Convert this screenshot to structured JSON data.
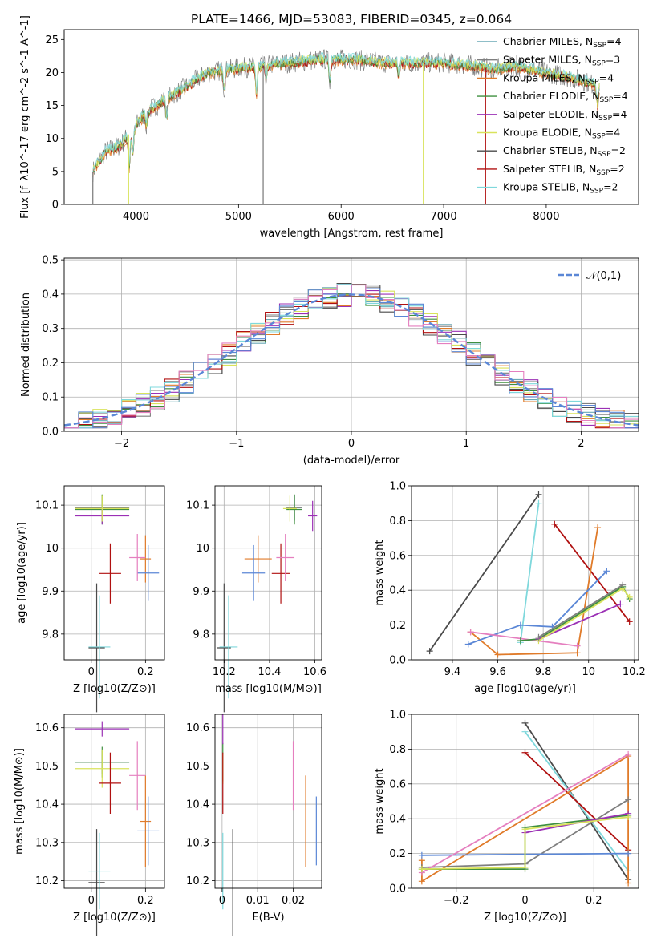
{
  "figure": {
    "title": "PLATE=1466, MJD=53083, FIBERID=0345, z=0.064"
  },
  "colors": {
    "chabrier_miles": "#6aa9b5",
    "salpeter_miles": "#7f7f7f",
    "kroupa_miles": "#e07b2a",
    "chabrier_elodie": "#3f8f3f",
    "salpeter_elodie": "#9b30b5",
    "kroupa_elodie": "#d9e35c",
    "chabrier_stelib": "#4a4a4a",
    "salpeter_stelib": "#b01010",
    "kroupa_stelib": "#7fd8dc",
    "blue": "#5b87d6",
    "pink": "#e57fbf"
  },
  "chart_data": [
    {
      "id": "spectrum",
      "type": "line",
      "title": "PLATE=1466, MJD=53083, FIBERID=0345, z=0.064",
      "xlabel": "wavelength [Angstrom, rest frame]",
      "ylabel": "Flux [f_λ10^-17 erg cm^-2 s^-1 A^-1]",
      "xlim": [
        3300,
        8900
      ],
      "ylim": [
        0,
        26.5
      ],
      "xticks": [
        4000,
        5000,
        6000,
        7000,
        8000
      ],
      "yticks": [
        0,
        5,
        10,
        15,
        20,
        25
      ],
      "legend_position": "right",
      "legend": [
        "Chabrier MILES, N_SSP=4",
        "Salpeter MILES, N_SSP=3",
        "Kroupa MILES, N_SSP=4",
        "Chabrier ELODIE, N_SSP=4",
        "Salpeter ELODIE, N_SSP=4",
        "Kroupa ELODIE, N_SSP=4",
        "Chabrier STELIB, N_SSP=2",
        "Salpeter STELIB, N_SSP=2",
        "Kroupa STELIB, N_SSP=2"
      ],
      "continuum": [
        [
          3580,
          5
        ],
        [
          3700,
          8
        ],
        [
          3850,
          9
        ],
        [
          3950,
          11
        ],
        [
          4100,
          14
        ],
        [
          4300,
          16
        ],
        [
          4500,
          18
        ],
        [
          4700,
          20
        ],
        [
          4900,
          20.5
        ],
        [
          5200,
          21
        ],
        [
          5500,
          21.5
        ],
        [
          5800,
          22
        ],
        [
          6100,
          22
        ],
        [
          6400,
          21.5
        ],
        [
          6700,
          21.5
        ],
        [
          7000,
          21.5
        ],
        [
          7300,
          21
        ],
        [
          7500,
          20.5
        ],
        [
          7700,
          21
        ],
        [
          8000,
          20
        ],
        [
          8300,
          19
        ],
        [
          8500,
          18
        ]
      ],
      "grid": false
    },
    {
      "id": "residuals",
      "type": "step",
      "xlabel": "(data-model)/error",
      "ylabel": "Normed distribution",
      "xlim": [
        -2.5,
        2.5
      ],
      "ylim": [
        0,
        0.505
      ],
      "xticks": [
        -2,
        -1,
        0,
        1,
        2
      ],
      "yticks": [
        0.0,
        0.1,
        0.2,
        0.3,
        0.4,
        0.5
      ],
      "legend": [
        "𝒩(0,1)"
      ],
      "legend_position": "top-right",
      "bin_width": 0.125,
      "bin_start": -2.5,
      "grid": true
    },
    {
      "id": "age-vs-Z",
      "type": "errorbar",
      "xlabel": "Z [log10(Z/Z⊙)]",
      "ylabel": "age  [log10(age/yr)]",
      "xlim": [
        -0.1,
        0.27
      ],
      "ylim": [
        9.74,
        10.145
      ],
      "xticks": [
        0.0,
        0.2
      ],
      "yticks": [
        9.8,
        9.9,
        10.0,
        10.1
      ],
      "points": [
        {
          "x": 0.04,
          "y": 10.094,
          "xerr": 0.1,
          "yerr": 0.03,
          "c": "chabrier_miles"
        },
        {
          "x": 0.04,
          "y": 10.094,
          "xerr": 0.1,
          "yerr": 0.03,
          "c": "salpeter_miles"
        },
        {
          "x": 0.2,
          "y": 9.975,
          "xerr": 0.02,
          "yerr": 0.055,
          "c": "kroupa_miles"
        },
        {
          "x": 0.04,
          "y": 10.09,
          "xerr": 0.1,
          "yerr": 0.035,
          "c": "chabrier_elodie"
        },
        {
          "x": 0.04,
          "y": 10.075,
          "xerr": 0.1,
          "yerr": 0.02,
          "c": "salpeter_elodie"
        },
        {
          "x": 0.04,
          "y": 10.092,
          "xerr": 0.1,
          "yerr": 0.03,
          "c": "kroupa_elodie"
        },
        {
          "x": 0.02,
          "y": 9.768,
          "xerr": 0.03,
          "yerr": 0.15,
          "c": "chabrier_stelib"
        },
        {
          "x": 0.07,
          "y": 9.941,
          "xerr": 0.04,
          "yerr": 0.07,
          "c": "salpeter_stelib"
        },
        {
          "x": 0.03,
          "y": 9.77,
          "xerr": 0.04,
          "yerr": 0.12,
          "c": "kroupa_stelib"
        },
        {
          "x": 0.21,
          "y": 9.942,
          "xerr": 0.04,
          "yerr": 0.065,
          "c": "blue"
        },
        {
          "x": 0.17,
          "y": 9.978,
          "xerr": 0.03,
          "yerr": 0.055,
          "c": "pink"
        }
      ]
    },
    {
      "id": "age-vs-mass",
      "type": "errorbar",
      "xlabel": "mass [log10(M/M⊙)]",
      "ylabel": "",
      "xlim": [
        10.16,
        10.63
      ],
      "ylim": [
        9.74,
        10.145
      ],
      "xticks": [
        10.2,
        10.4,
        10.6
      ],
      "yticks": [
        9.8,
        9.9,
        10.0,
        10.1
      ],
      "points": [
        {
          "x": 10.51,
          "y": 10.094,
          "xerr": 0.035,
          "yerr": 0.03,
          "c": "chabrier_miles"
        },
        {
          "x": 10.51,
          "y": 10.094,
          "xerr": 0.035,
          "yerr": 0.03,
          "c": "salpeter_miles"
        },
        {
          "x": 10.35,
          "y": 9.975,
          "xerr": 0.06,
          "yerr": 0.055,
          "c": "kroupa_miles"
        },
        {
          "x": 10.51,
          "y": 10.09,
          "xerr": 0.035,
          "yerr": 0.035,
          "c": "chabrier_elodie"
        },
        {
          "x": 10.59,
          "y": 10.075,
          "xerr": 0.02,
          "yerr": 0.035,
          "c": "salpeter_elodie"
        },
        {
          "x": 10.49,
          "y": 10.092,
          "xerr": 0.03,
          "yerr": 0.03,
          "c": "kroupa_elodie"
        },
        {
          "x": 10.2,
          "y": 9.768,
          "xerr": 0.03,
          "yerr": 0.15,
          "c": "chabrier_stelib"
        },
        {
          "x": 10.45,
          "y": 9.941,
          "xerr": 0.04,
          "yerr": 0.07,
          "c": "salpeter_stelib"
        },
        {
          "x": 10.22,
          "y": 9.77,
          "xerr": 0.04,
          "yerr": 0.12,
          "c": "kroupa_stelib"
        },
        {
          "x": 10.33,
          "y": 9.942,
          "xerr": 0.05,
          "yerr": 0.065,
          "c": "blue"
        },
        {
          "x": 10.47,
          "y": 9.978,
          "xerr": 0.04,
          "yerr": 0.055,
          "c": "pink"
        }
      ]
    },
    {
      "id": "mass-weight-vs-age",
      "type": "line",
      "xlabel": "age  [log10(age/yr)]",
      "ylabel": "mass weight",
      "xlim": [
        9.22,
        10.22
      ],
      "ylim": [
        0.0,
        1.0
      ],
      "xticks": [
        9.4,
        9.6,
        9.8,
        10.0,
        10.2
      ],
      "yticks": [
        0.0,
        0.2,
        0.4,
        0.6,
        0.8,
        1.0
      ],
      "series": [
        {
          "c": "chabrier_stelib",
          "points": [
            [
              9.3,
              0.05
            ],
            [
              9.78,
              0.95
            ]
          ]
        },
        {
          "c": "kroupa_stelib",
          "points": [
            [
              9.7,
              0.1
            ],
            [
              9.78,
              0.9
            ]
          ]
        },
        {
          "c": "salpeter_stelib",
          "points": [
            [
              9.85,
              0.78
            ],
            [
              10.18,
              0.22
            ]
          ]
        },
        {
          "c": "kroupa_miles",
          "points": [
            [
              9.48,
              0.16
            ],
            [
              9.6,
              0.03
            ],
            [
              9.95,
              0.04
            ],
            [
              10.04,
              0.76
            ]
          ]
        },
        {
          "c": "blue",
          "points": [
            [
              9.47,
              0.09
            ],
            [
              9.7,
              0.2
            ],
            [
              9.84,
              0.19
            ],
            [
              10.08,
              0.51
            ]
          ]
        },
        {
          "c": "pink",
          "points": [
            [
              9.48,
              0.16
            ],
            [
              9.95,
              0.08
            ]
          ]
        },
        {
          "c": "chabrier_elodie",
          "points": [
            [
              9.7,
              0.11
            ],
            [
              9.78,
              0.12
            ],
            [
              10.15,
              0.42
            ],
            [
              10.18,
              0.35
            ]
          ]
        },
        {
          "c": "salpeter_elodie",
          "points": [
            [
              9.78,
              0.12
            ],
            [
              10.14,
              0.32
            ]
          ]
        },
        {
          "c": "kroupa_elodie",
          "points": [
            [
              9.78,
              0.11
            ],
            [
              10.15,
              0.41
            ],
            [
              10.18,
              0.36
            ]
          ]
        },
        {
          "c": "salpeter_miles",
          "points": [
            [
              9.78,
              0.13
            ],
            [
              10.15,
              0.43
            ]
          ]
        }
      ]
    },
    {
      "id": "mass-vs-Z",
      "type": "errorbar",
      "xlabel": "Z [log10(Z/Z⊙)]",
      "ylabel": "mass [log10(M/M⊙)]",
      "xlim": [
        -0.1,
        0.27
      ],
      "ylim": [
        10.18,
        10.635
      ],
      "xticks": [
        0.0,
        0.2
      ],
      "yticks": [
        10.2,
        10.3,
        10.4,
        10.5,
        10.6
      ],
      "points": [
        {
          "x": 0.04,
          "y": 10.51,
          "xerr": 0.1,
          "yerr": 0.03,
          "c": "chabrier_miles"
        },
        {
          "x": 0.04,
          "y": 10.51,
          "xerr": 0.1,
          "yerr": 0.03,
          "c": "salpeter_miles"
        },
        {
          "x": 0.2,
          "y": 10.355,
          "xerr": 0.02,
          "yerr": 0.12,
          "c": "kroupa_miles"
        },
        {
          "x": 0.04,
          "y": 10.51,
          "xerr": 0.1,
          "yerr": 0.04,
          "c": "chabrier_elodie"
        },
        {
          "x": 0.04,
          "y": 10.597,
          "xerr": 0.1,
          "yerr": 0.02,
          "c": "salpeter_elodie"
        },
        {
          "x": 0.04,
          "y": 10.493,
          "xerr": 0.1,
          "yerr": 0.05,
          "c": "kroupa_elodie"
        },
        {
          "x": 0.02,
          "y": 10.195,
          "xerr": 0.03,
          "yerr": 0.14,
          "c": "chabrier_stelib"
        },
        {
          "x": 0.07,
          "y": 10.455,
          "xerr": 0.04,
          "yerr": 0.08,
          "c": "salpeter_stelib"
        },
        {
          "x": 0.03,
          "y": 10.225,
          "xerr": 0.04,
          "yerr": 0.1,
          "c": "kroupa_stelib"
        },
        {
          "x": 0.21,
          "y": 10.33,
          "xerr": 0.04,
          "yerr": 0.09,
          "c": "blue"
        },
        {
          "x": 0.17,
          "y": 10.475,
          "xerr": 0.03,
          "yerr": 0.09,
          "c": "pink"
        }
      ]
    },
    {
      "id": "mass-vs-EBV",
      "type": "errorbar",
      "xlabel": "E(B-V)",
      "ylabel": "",
      "xlim": [
        -0.002,
        0.028
      ],
      "ylim": [
        10.18,
        10.635
      ],
      "xticks": [
        0.0,
        0.01,
        0.02
      ],
      "yticks": [
        10.2,
        10.3,
        10.4,
        10.5,
        10.6
      ],
      "points": [
        {
          "x": 0.0002,
          "y": 10.51,
          "xerr": 0,
          "yerr": 0.05,
          "c": "chabrier_elodie"
        },
        {
          "x": 0.0002,
          "y": 10.597,
          "xerr": 0,
          "yerr": 0.04,
          "c": "salpeter_elodie"
        },
        {
          "x": 0.0002,
          "y": 10.493,
          "xerr": 0,
          "yerr": 0.04,
          "c": "kroupa_elodie"
        },
        {
          "x": 0.0002,
          "y": 10.455,
          "xerr": 0,
          "yerr": 0.08,
          "c": "salpeter_stelib"
        },
        {
          "x": 0.0002,
          "y": 10.225,
          "xerr": 0,
          "yerr": 0.1,
          "c": "kroupa_stelib"
        },
        {
          "x": 0.003,
          "y": 10.195,
          "xerr": 0,
          "yerr": 0.14,
          "c": "chabrier_stelib"
        },
        {
          "x": 0.02,
          "y": 10.475,
          "xerr": 0,
          "yerr": 0.09,
          "c": "pink"
        },
        {
          "x": 0.0235,
          "y": 10.355,
          "xerr": 0,
          "yerr": 0.12,
          "c": "kroupa_miles"
        },
        {
          "x": 0.0265,
          "y": 10.33,
          "xerr": 0,
          "yerr": 0.09,
          "c": "blue"
        }
      ]
    },
    {
      "id": "mass-weight-vs-Z",
      "type": "line",
      "xlabel": "Z [log10(Z/Z⊙)]",
      "ylabel": "mass weight",
      "xlim": [
        -0.33,
        0.33
      ],
      "ylim": [
        0.0,
        1.0
      ],
      "xticks": [
        -0.2,
        0.0,
        0.2
      ],
      "yticks": [
        0.0,
        0.2,
        0.4,
        0.6,
        0.8,
        1.0
      ],
      "series": [
        {
          "c": "chabrier_stelib",
          "points": [
            [
              0.0,
              0.95
            ],
            [
              0.3,
              0.05
            ]
          ]
        },
        {
          "c": "kroupa_stelib",
          "points": [
            [
              0.0,
              0.9
            ],
            [
              0.3,
              0.1
            ]
          ]
        },
        {
          "c": "salpeter_stelib",
          "points": [
            [
              0.0,
              0.78
            ],
            [
              0.3,
              0.22
            ]
          ]
        },
        {
          "c": "kroupa_miles",
          "points": [
            [
              -0.3,
              0.16
            ],
            [
              -0.3,
              0.04
            ],
            [
              0.3,
              0.76
            ],
            [
              0.3,
              0.03
            ]
          ]
        },
        {
          "c": "salpeter_miles",
          "points": [
            [
              -0.3,
              0.12
            ],
            [
              0.0,
              0.14
            ],
            [
              0.3,
              0.51
            ]
          ]
        },
        {
          "c": "blue",
          "points": [
            [
              -0.3,
              0.19
            ],
            [
              0.3,
              0.2
            ]
          ]
        },
        {
          "c": "pink",
          "points": [
            [
              -0.3,
              0.09
            ],
            [
              0.3,
              0.77
            ]
          ]
        },
        {
          "c": "chabrier_elodie",
          "points": [
            [
              -0.3,
              0.11
            ],
            [
              0.0,
              0.11
            ],
            [
              0.0,
              0.35
            ],
            [
              0.3,
              0.42
            ]
          ]
        },
        {
          "c": "salpeter_elodie",
          "points": [
            [
              0.0,
              0.32
            ],
            [
              0.3,
              0.43
            ]
          ]
        },
        {
          "c": "kroupa_elodie",
          "points": [
            [
              -0.3,
              0.11
            ],
            [
              0.0,
              0.12
            ],
            [
              0.0,
              0.34
            ],
            [
              0.3,
              0.41
            ]
          ]
        }
      ]
    }
  ]
}
